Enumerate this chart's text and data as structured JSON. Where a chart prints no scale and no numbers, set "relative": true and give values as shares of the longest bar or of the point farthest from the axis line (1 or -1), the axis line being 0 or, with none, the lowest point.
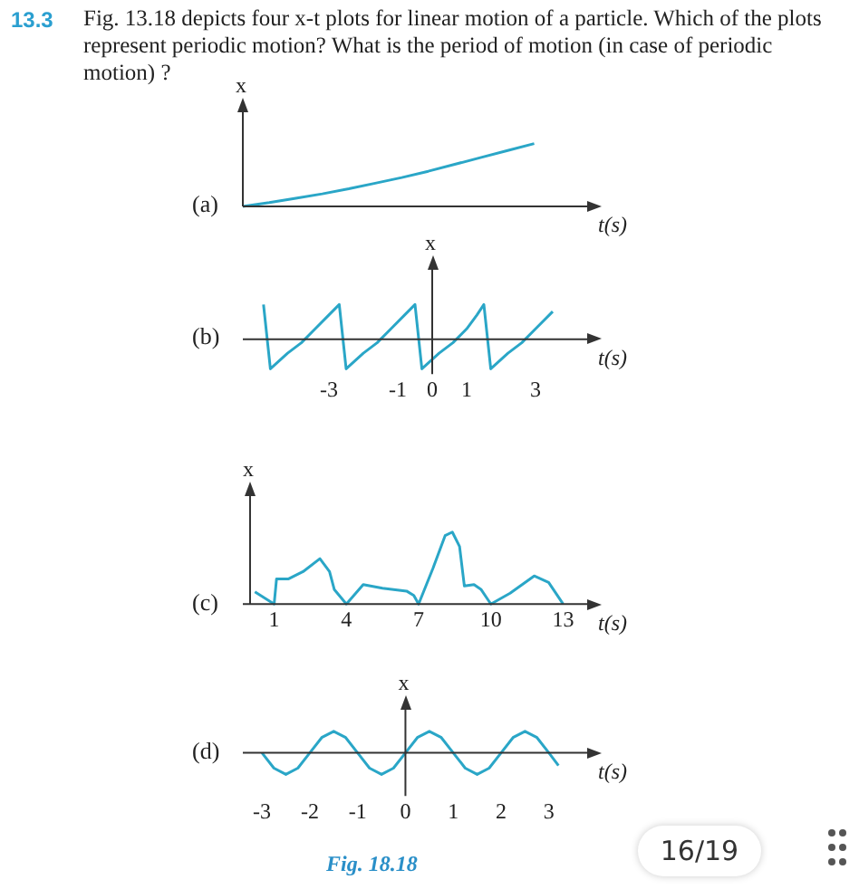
{
  "chart_data": [
    {
      "type": "line",
      "title": "(a)",
      "ylabel": "x",
      "xlabel": "t(s)",
      "relative": true,
      "color": "#2aa6c7",
      "annotations": [
        "13.3",
        "Fig. 13.18 depicts four x-t plots for linear motion of a particle. Which of the plots represent periodic motion? What is the period of motion (in case of periodic motion) ?"
      ],
      "categories": [
        null,
        null,
        null,
        null,
        null,
        null,
        null,
        null,
        null,
        null,
        null,
        null,
        null,
        null
      ],
      "values": [
        0,
        0.06,
        0.13,
        0.2,
        0.28,
        0.37,
        0.46,
        0.56,
        0.67,
        0.78,
        0.89,
        1,
        null,
        null
      ]
    },
    {
      "type": "line",
      "title": "(b)",
      "ylabel": "x",
      "xlabel": "t(s)",
      "relative": true,
      "color": "#2aa6c7",
      "xlim": [
        -5.5,
        4.5
      ],
      "xticks": [
        -3,
        -1,
        0,
        1,
        3
      ],
      "x": [
        -4.9,
        -4.7,
        -4.2,
        -3.8,
        -3.4,
        -3.0,
        -2.7,
        -2.5,
        -2.0,
        -1.6,
        -1.2,
        -0.8,
        -0.5,
        -0.3,
        0.2,
        0.6,
        1.0,
        1.3,
        1.5,
        1.7,
        2.2,
        2.6,
        3.0,
        3.5
      ],
      "values": [
        1,
        -0.85,
        -0.4,
        -0.1,
        0.3,
        0.7,
        1,
        -0.85,
        -0.4,
        -0.1,
        0.3,
        0.7,
        1,
        -0.85,
        -0.4,
        -0.1,
        0.3,
        0.7,
        1,
        -0.85,
        -0.4,
        -0.1,
        0.3,
        0.8
      ]
    },
    {
      "type": "line",
      "title": "(c)",
      "ylabel": "x",
      "xlabel": "t(s)",
      "relative": true,
      "color": "#2aa6c7",
      "xlim": [
        -0.3,
        14
      ],
      "xticks": [
        1,
        4,
        7,
        10,
        13
      ],
      "x": [
        0.2,
        1,
        1.1,
        1.6,
        2.2,
        2.9,
        3.3,
        3.5,
        4,
        4.7,
        5.5,
        6.5,
        6.8,
        7,
        7.6,
        8.1,
        8.4,
        8.7,
        8.9,
        9.3,
        9.6,
        9.9,
        10,
        10.8,
        11.8,
        12.4,
        13
      ],
      "values": [
        0.17,
        0,
        0.35,
        0.35,
        0.45,
        0.63,
        0.45,
        0.2,
        0,
        0.27,
        0.22,
        0.18,
        0.12,
        0,
        0.5,
        0.95,
        1,
        0.8,
        0.25,
        0.27,
        0.2,
        0.05,
        0,
        0.15,
        0.39,
        0.3,
        0
      ]
    },
    {
      "type": "line",
      "title": "(d)",
      "ylabel": "x",
      "xlabel": "t(s)",
      "relative": true,
      "color": "#2aa6c7",
      "xlim": [
        -3.4,
        3.8
      ],
      "xticks": [
        -3,
        -2,
        -1,
        0,
        1,
        2,
        3
      ],
      "annotations": [
        "Fig. 18.18",
        "16/19"
      ],
      "x": [
        -3,
        -2.75,
        -2.5,
        -2.25,
        -2,
        -1.75,
        -1.5,
        -1.25,
        -1,
        -0.75,
        -0.5,
        -0.25,
        0,
        0.25,
        0.5,
        0.75,
        1,
        1.25,
        1.5,
        1.75,
        2,
        2.25,
        2.5,
        2.75,
        3,
        3.2
      ],
      "values": [
        0,
        -0.71,
        -1,
        -0.71,
        0,
        0.71,
        1,
        0.71,
        0,
        -0.71,
        -1,
        -0.71,
        0,
        0.71,
        1,
        0.71,
        0,
        -0.71,
        -1,
        -0.71,
        0,
        0.71,
        1,
        0.71,
        0,
        -0.59
      ]
    }
  ]
}
